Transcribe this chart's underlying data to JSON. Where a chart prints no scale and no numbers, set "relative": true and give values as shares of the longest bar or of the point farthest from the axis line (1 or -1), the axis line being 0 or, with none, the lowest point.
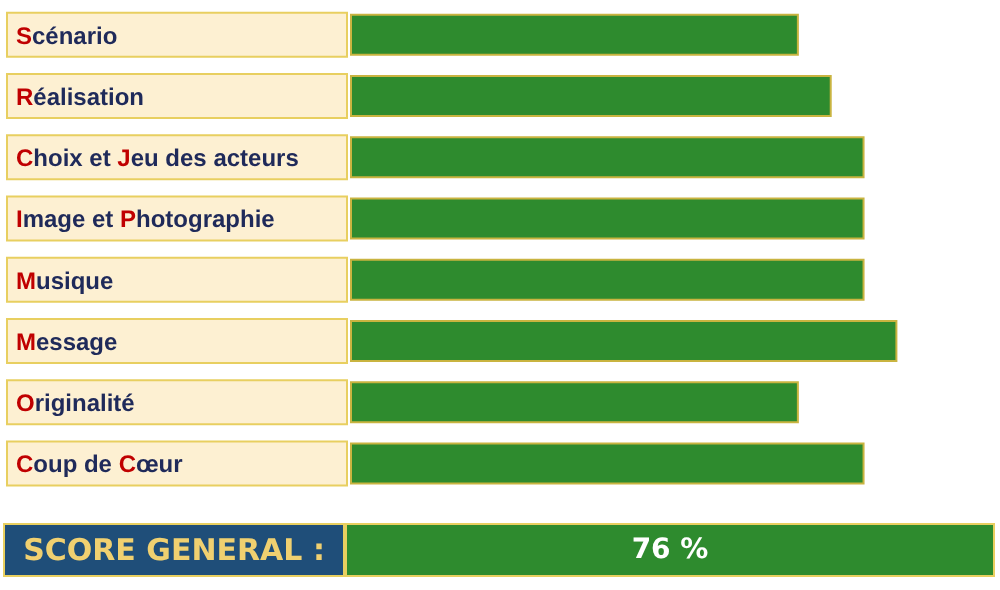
{
  "chart_data": {
    "type": "bar",
    "orientation": "horizontal",
    "relative": true,
    "categories": [
      "Scénario",
      "Réalisation",
      "Choix et Jeu des acteurs",
      "Image et Photographie",
      "Musique",
      "Message",
      "Originalité",
      "Coup de Cœur"
    ],
    "values": [
      0.82,
      0.88,
      0.94,
      0.94,
      0.94,
      1,
      0.82,
      0.94
    ],
    "color": "#2e8b2e",
    "annotations": [
      "SCORE GENERAL :",
      "76 %"
    ]
  }
}
